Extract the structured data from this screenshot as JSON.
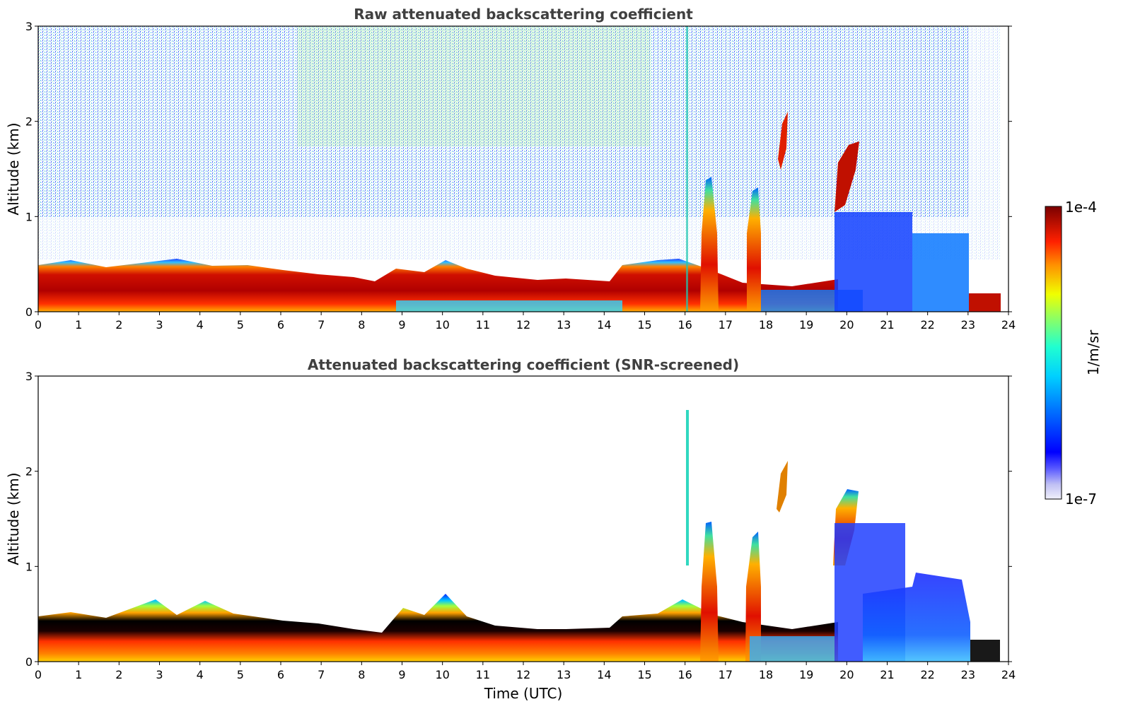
{
  "chart_data": [
    {
      "type": "heatmap",
      "title": "Raw attenuated backscattering coefficient",
      "xlabel": "",
      "ylabel": "Altitude (km)",
      "xlim": [
        0,
        24
      ],
      "ylim": [
        0,
        3
      ],
      "x_ticks": [
        0,
        1,
        2,
        3,
        4,
        5,
        6,
        7,
        8,
        9,
        10,
        11,
        12,
        13,
        14,
        15,
        16,
        17,
        18,
        19,
        20,
        21,
        22,
        23,
        24
      ],
      "y_ticks": [
        0,
        1,
        2,
        3
      ],
      "features": [
        {
          "t_start": 0,
          "t_end": 14,
          "z_bottom": 0,
          "z_top": 0.4,
          "level": "high"
        },
        {
          "t_start": 16.4,
          "t_end": 16.8,
          "z_bottom": 0,
          "z_top": 1.45,
          "level": "high"
        },
        {
          "t_start": 17.6,
          "t_end": 17.9,
          "z_bottom": 0.2,
          "z_top": 1.35,
          "level": "high"
        },
        {
          "t_start": 18.3,
          "t_end": 18.6,
          "z_bottom": 1.5,
          "z_top": 2.1,
          "level": "high"
        },
        {
          "t_start": 19.7,
          "t_end": 20.3,
          "z_bottom": 1.0,
          "z_top": 1.8,
          "level": "high"
        },
        {
          "t_start": 21.5,
          "t_end": 23.1,
          "z_bottom": 0,
          "z_top": 0.8,
          "level": "low"
        },
        {
          "t_start": 23.1,
          "t_end": 23.8,
          "z_bottom": 0,
          "z_top": 0.25,
          "level": "high"
        }
      ],
      "noise_top_km": 3
    },
    {
      "type": "heatmap",
      "title": "Attenuated backscattering coefficient (SNR-screened)",
      "xlabel": "Time (UTC)",
      "ylabel": "Altitude (km)",
      "xlim": [
        0,
        24
      ],
      "ylim": [
        0,
        3
      ],
      "x_ticks": [
        0,
        1,
        2,
        3,
        4,
        5,
        6,
        7,
        8,
        9,
        10,
        11,
        12,
        13,
        14,
        15,
        16,
        17,
        18,
        19,
        20,
        21,
        22,
        23,
        24
      ],
      "y_ticks": [
        0,
        1,
        2,
        3
      ],
      "features": [
        {
          "t_start": 0,
          "t_end": 15.5,
          "z_bottom": 0,
          "z_top": 0.5,
          "level": "high"
        },
        {
          "t_start": 16.4,
          "t_end": 16.8,
          "z_bottom": 0,
          "z_top": 1.45,
          "level": "high"
        },
        {
          "t_start": 17.6,
          "t_end": 17.9,
          "z_bottom": 0.2,
          "z_top": 1.35,
          "level": "high"
        },
        {
          "t_start": 19.7,
          "t_end": 20.3,
          "z_bottom": 1.0,
          "z_top": 1.8,
          "level": "high"
        },
        {
          "t_start": 19.8,
          "t_end": 23.1,
          "z_bottom": 0.3,
          "z_top": 1.3,
          "level": "low"
        }
      ]
    }
  ],
  "colorbar": {
    "max_label": "1e-4",
    "min_label": "1e-7",
    "unit_label": "1/m/sr",
    "stops": [
      "#e8e8f8",
      "#b8b8f0",
      "#0000ff",
      "#00a0ff",
      "#00e8e0",
      "#40ff80",
      "#f0ff00",
      "#ffa000",
      "#ff3000",
      "#c00000",
      "#800000"
    ]
  }
}
